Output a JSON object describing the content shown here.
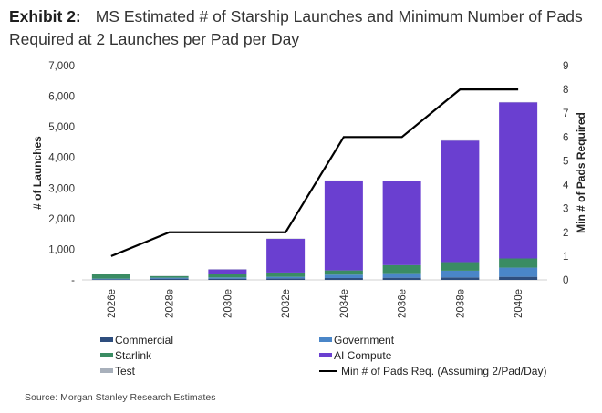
{
  "header": {
    "exhibit": "Exhibit 2:",
    "title": "MS Estimated # of Starship Launches and Minimum Number of Pads Required at 2 Launches per Pad per Day"
  },
  "source": "Source: Morgan Stanley Research Estimates",
  "chart_data": {
    "type": "bar",
    "stacked": true,
    "categories": [
      "2026e",
      "2028e",
      "2030e",
      "2032e",
      "2034e",
      "2036e",
      "2038e",
      "2040e"
    ],
    "ylabel": "# of Launches",
    "y2label": "Min # of Pads Required",
    "ylim": [
      0,
      7000
    ],
    "y2lim": [
      0,
      9
    ],
    "yticks": [
      "-",
      "1,000",
      "2,000",
      "3,000",
      "4,000",
      "5,000",
      "6,000",
      "7,000"
    ],
    "y2ticks": [
      "0",
      "1",
      "2",
      "3",
      "4",
      "5",
      "6",
      "7",
      "8",
      "9"
    ],
    "series": [
      {
        "name": "Commercial",
        "color": "#2e4e7e",
        "values": [
          20,
          40,
          40,
          50,
          60,
          70,
          80,
          100
        ]
      },
      {
        "name": "Government",
        "color": "#4a86c8",
        "values": [
          20,
          30,
          40,
          50,
          110,
          150,
          220,
          300
        ]
      },
      {
        "name": "Starlink",
        "color": "#3a8c63",
        "values": [
          140,
          50,
          110,
          140,
          140,
          260,
          280,
          300
        ]
      },
      {
        "name": "AI Compute",
        "color": "#6a3fd0",
        "values": [
          0,
          0,
          150,
          1100,
          2930,
          2750,
          3970,
          5100
        ]
      },
      {
        "name": "Test",
        "color": "#a8b0bb",
        "values": [
          10,
          10,
          10,
          10,
          10,
          10,
          10,
          10
        ]
      }
    ],
    "line": {
      "name": "Min # of Pads Req. (Assuming 2/Pad/Day)",
      "color": "#000000",
      "axis": "right",
      "values": [
        1,
        2,
        2,
        2,
        6,
        6,
        8,
        8
      ]
    },
    "grid": false,
    "legend": "bottom"
  }
}
